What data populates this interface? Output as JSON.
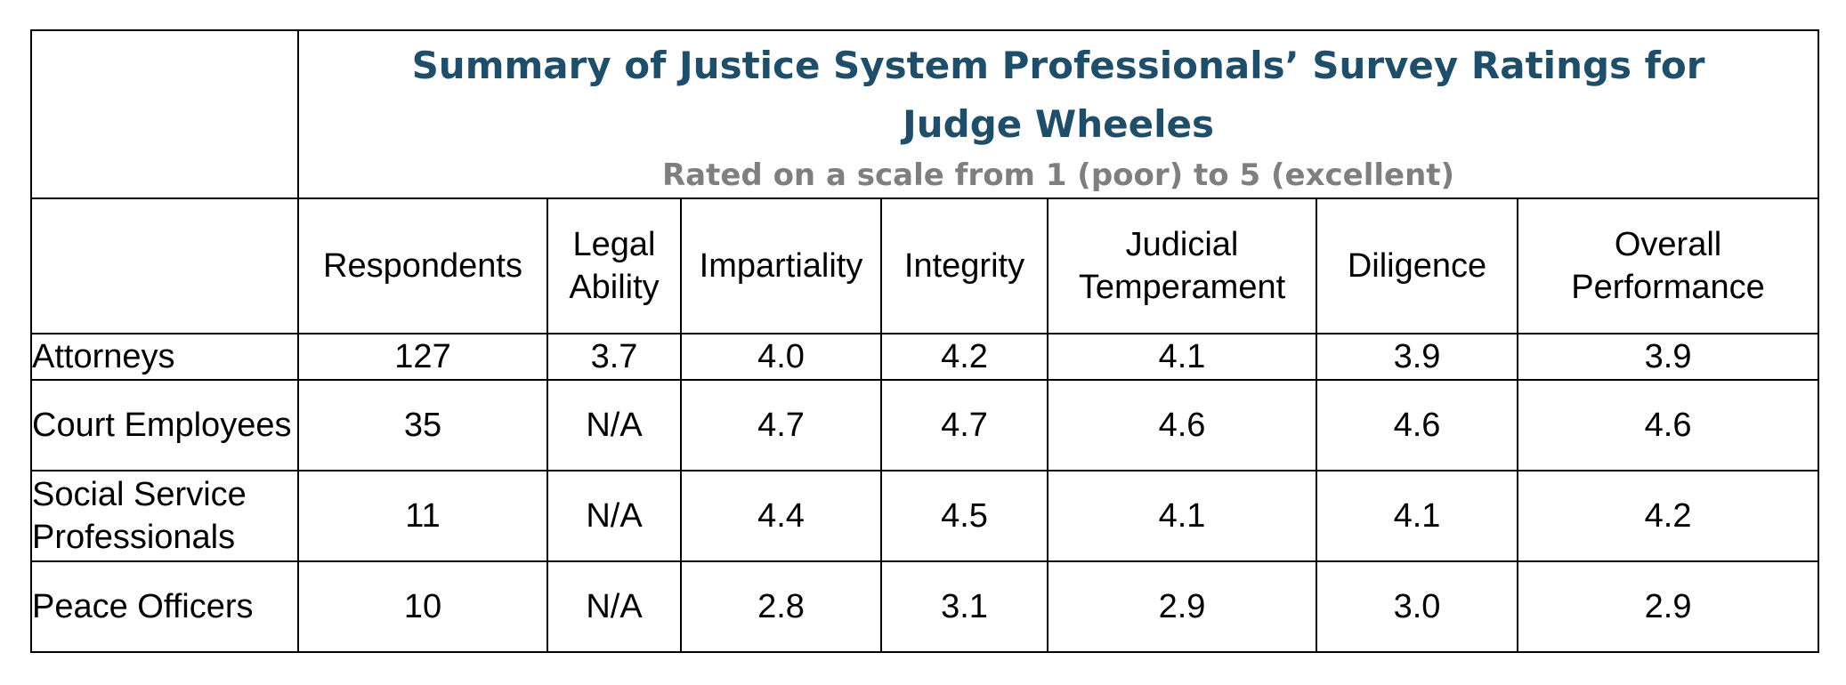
{
  "title": "Summary of Justice System Professionals’ Survey Ratings for Judge Wheeles",
  "subtitle": "Rated on a scale from 1 (poor) to 5 (excellent)",
  "columns": [
    "Respondents",
    "Legal Ability",
    "Impartiality",
    "Integrity",
    "Judicial Temperament",
    "Diligence",
    "Overall Performance"
  ],
  "rows": [
    {
      "label": "Attorneys",
      "values": [
        "127",
        "3.7",
        "4.0",
        "4.2",
        "4.1",
        "3.9",
        "3.9"
      ]
    },
    {
      "label": "Court Employees",
      "values": [
        "35",
        "N/A",
        "4.7",
        "4.7",
        "4.6",
        "4.6",
        "4.6"
      ]
    },
    {
      "label": "Social Service Professionals",
      "values": [
        "11",
        "N/A",
        "4.4",
        "4.5",
        "4.1",
        "4.1",
        "4.2"
      ]
    },
    {
      "label": "Peace Officers",
      "values": [
        "10",
        "N/A",
        "2.8",
        "3.1",
        "2.9",
        "3.0",
        "2.9"
      ]
    }
  ]
}
